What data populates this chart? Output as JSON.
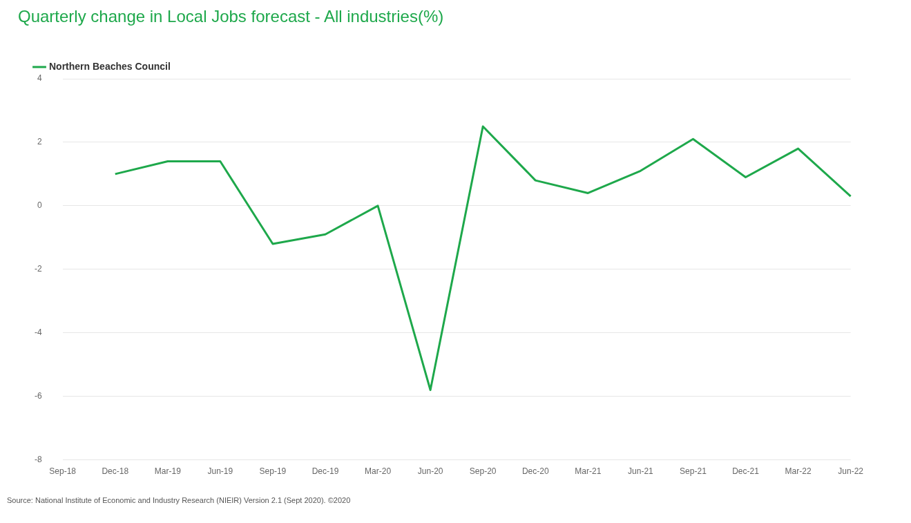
{
  "chart_data": {
    "type": "line",
    "title": "Quarterly change in Local Jobs forecast - All industries(%)",
    "categories": [
      "Sep-18",
      "Dec-18",
      "Mar-19",
      "Jun-19",
      "Sep-19",
      "Dec-19",
      "Mar-20",
      "Jun-20",
      "Sep-20",
      "Dec-20",
      "Mar-21",
      "Jun-21",
      "Sep-21",
      "Dec-21",
      "Mar-22",
      "Jun-22"
    ],
    "series": [
      {
        "name": "Northern Beaches Council",
        "color": "#1ea84b",
        "values": [
          null,
          1.0,
          1.4,
          1.4,
          -1.2,
          -0.9,
          0,
          -5.8,
          2.5,
          0.8,
          0.4,
          1.1,
          2.1,
          0.9,
          1.8,
          0.3
        ]
      }
    ],
    "ylim": [
      -8,
      4
    ],
    "yticks": [
      -8,
      -6,
      -4,
      -2,
      0,
      2,
      4
    ],
    "grid": "y",
    "legend": "top left",
    "marker": "none",
    "line_style": "solid",
    "annotations": [
      "Source: National Institute of Economic and Industry Research (NIEIR) Version 2.1 (Sept 2020). ©2020"
    ]
  }
}
